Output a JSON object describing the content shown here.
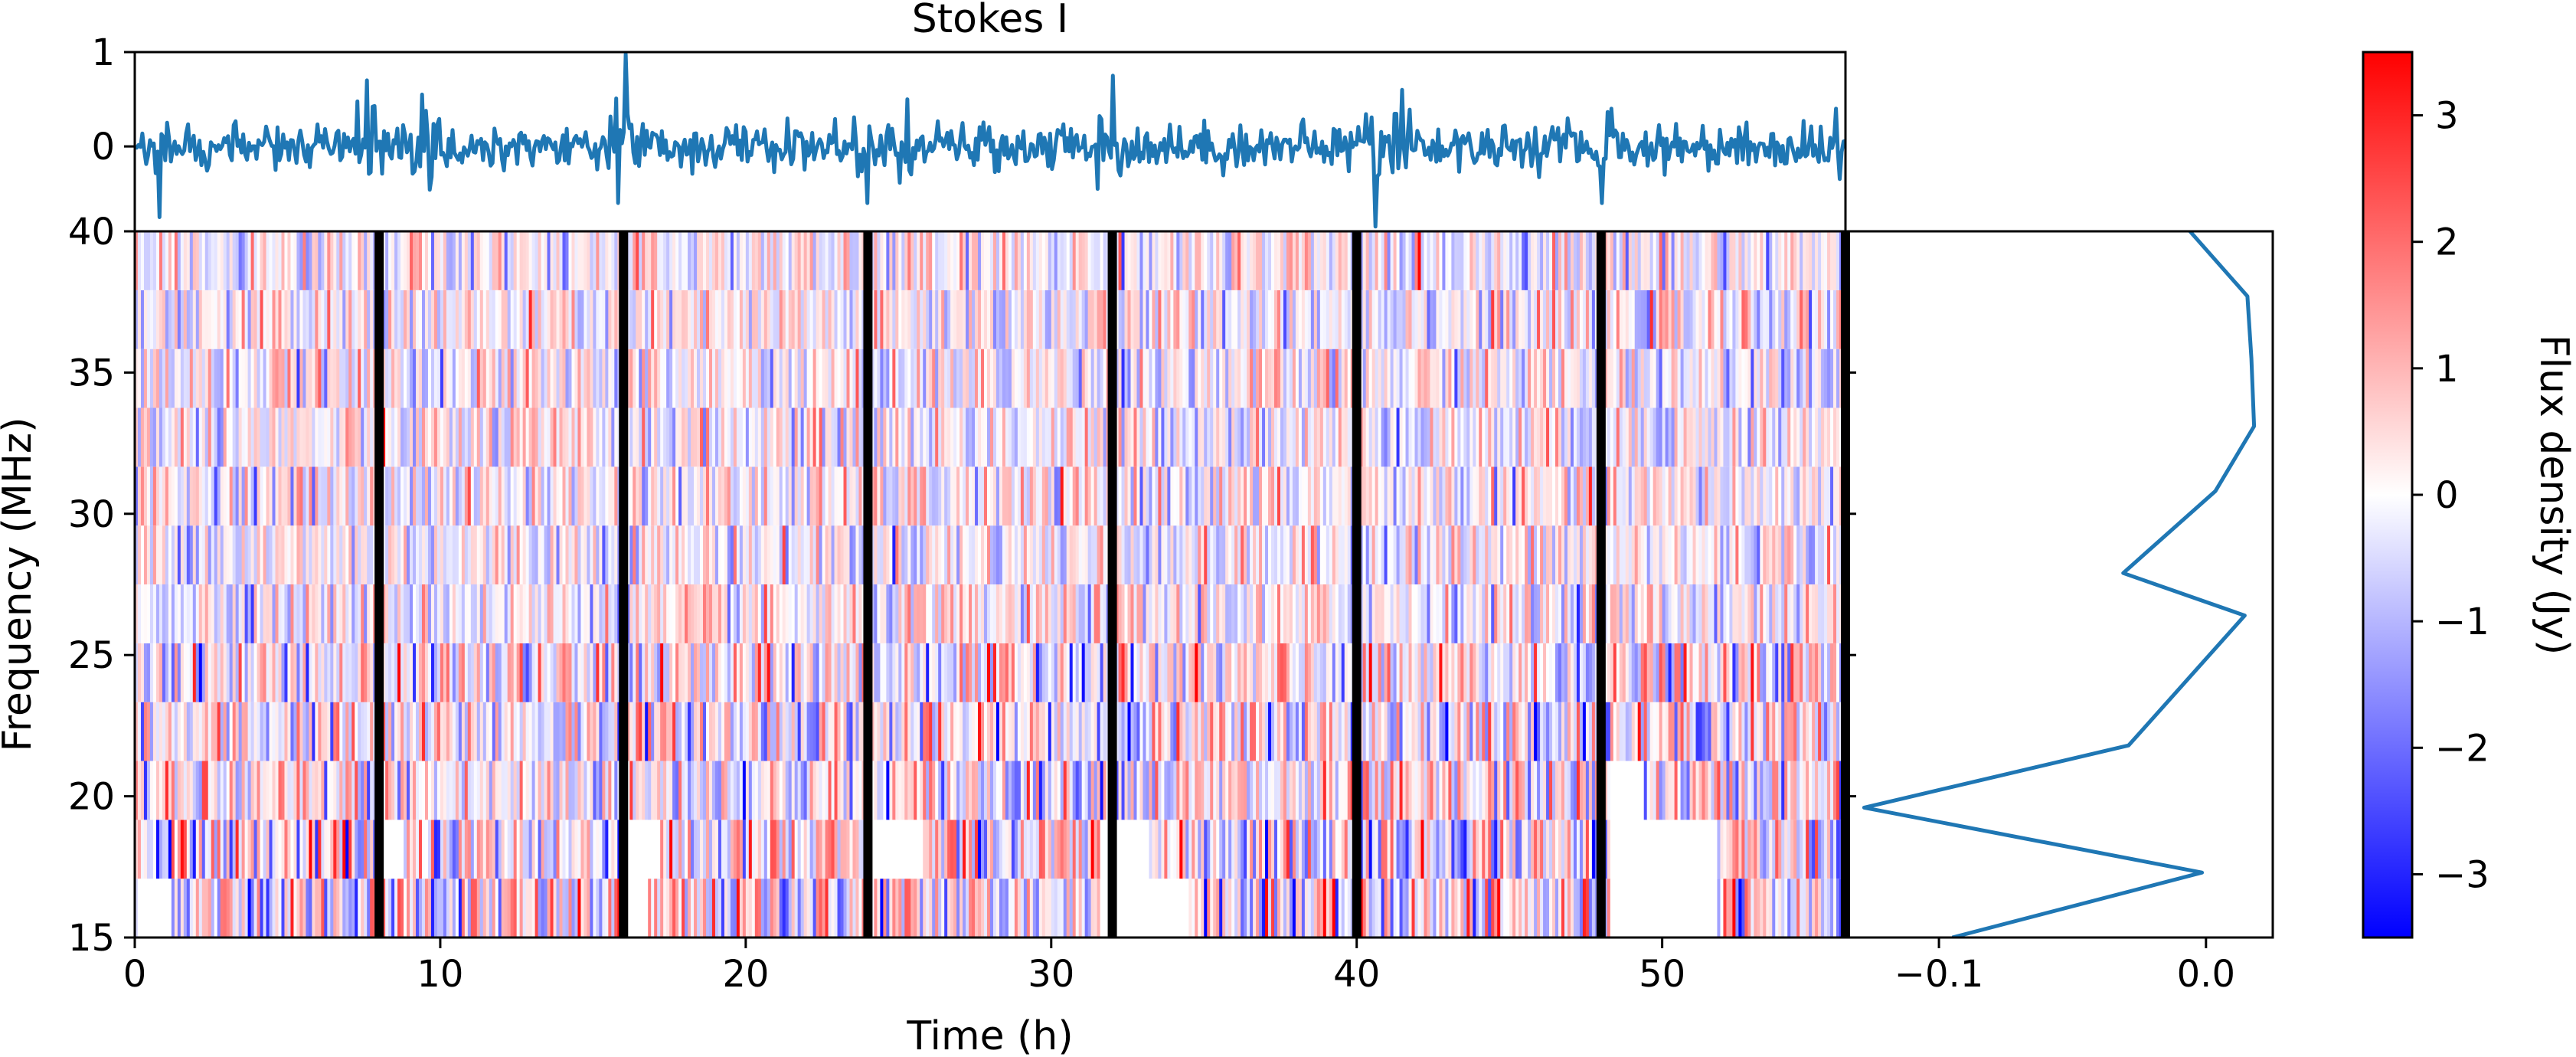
{
  "chart_data": [
    {
      "panel": "lightcurve",
      "type": "line",
      "title": "Stokes I",
      "xlim": [
        0,
        56
      ],
      "ylim": [
        -0.9,
        1.0
      ],
      "yticks": [
        {
          "value": 1,
          "label": "1"
        },
        {
          "value": 0,
          "label": "0"
        }
      ],
      "description_series": "noisy time series around 0 with spikes near x=7.6, 16.1, 32, 40.6",
      "spikes": [
        {
          "x": 0.8,
          "y": -0.75
        },
        {
          "x": 7.6,
          "y": 0.7
        },
        {
          "x": 9.4,
          "y": 0.55
        },
        {
          "x": 16.1,
          "y": 0.98
        },
        {
          "x": 15.8,
          "y": -0.6
        },
        {
          "x": 24.0,
          "y": -0.6
        },
        {
          "x": 25.3,
          "y": 0.5
        },
        {
          "x": 32.0,
          "y": 0.75
        },
        {
          "x": 31.5,
          "y": -0.45
        },
        {
          "x": 40.6,
          "y": -0.85
        },
        {
          "x": 41.5,
          "y": 0.6
        },
        {
          "x": 48.0,
          "y": -0.6
        },
        {
          "x": 55.7,
          "y": 0.4
        }
      ]
    },
    {
      "panel": "dynamic_spectrum",
      "type": "heatmap",
      "xlabel": "Time (h)",
      "ylabel": "Frequency (MHz)",
      "xlim": [
        0,
        56
      ],
      "ylim": [
        15,
        40
      ],
      "xticks": [
        {
          "value": 0,
          "label": "0"
        },
        {
          "value": 10,
          "label": "10"
        },
        {
          "value": 20,
          "label": "20"
        },
        {
          "value": 30,
          "label": "30"
        },
        {
          "value": 40,
          "label": "40"
        },
        {
          "value": 50,
          "label": "50"
        }
      ],
      "yticks": [
        {
          "value": 40,
          "label": "40"
        },
        {
          "value": 35,
          "label": "35"
        },
        {
          "value": 30,
          "label": "30"
        },
        {
          "value": 25,
          "label": "25"
        },
        {
          "value": 20,
          "label": "20"
        },
        {
          "value": 15,
          "label": "15"
        }
      ],
      "freq_channels": 12,
      "gaps_h": [
        8.0,
        16.0,
        24.0,
        32.0,
        40.0,
        48.0,
        56.0
      ],
      "colormap": [
        "#0000ff",
        "#ffffff",
        "#ff0000"
      ],
      "vlim": [
        -3.5,
        3.5
      ]
    },
    {
      "panel": "spectrum",
      "type": "line",
      "xlim": [
        -0.135,
        0.025
      ],
      "ylim": [
        15,
        40
      ],
      "xticks": [
        {
          "value": -0.1,
          "label": "−0.1"
        },
        {
          "value": 0.0,
          "label": "0.0"
        }
      ],
      "x": [
        -0.095,
        -0.0015,
        -0.128,
        -0.029,
        0.0145,
        -0.031,
        0.0035,
        0.018,
        0.017,
        0.0155,
        -0.006
      ],
      "y": [
        15.0,
        17.3,
        19.6,
        21.8,
        26.4,
        27.9,
        30.8,
        33.1,
        35.5,
        37.7,
        40.0
      ]
    },
    {
      "panel": "colorbar",
      "type": "colorbar",
      "label": "Flux density (Jy)",
      "vlim": [
        -3.5,
        3.5
      ],
      "ticks": [
        {
          "value": 3,
          "label": "3"
        },
        {
          "value": 2,
          "label": "2"
        },
        {
          "value": 1,
          "label": "1"
        },
        {
          "value": 0,
          "label": "0"
        },
        {
          "value": -1,
          "label": "−1"
        },
        {
          "value": -2,
          "label": "−2"
        },
        {
          "value": -3,
          "label": "−3"
        }
      ],
      "colors": [
        "#0000ff",
        "#ffffff",
        "#ff0000"
      ]
    }
  ]
}
